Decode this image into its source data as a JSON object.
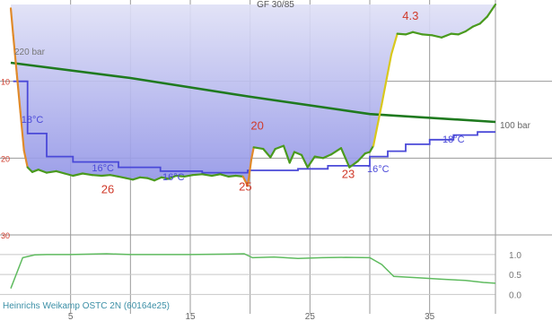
{
  "chart_data": [
    {
      "type": "area",
      "title": "GF 30/85",
      "xlim": [
        0,
        40.5
      ],
      "ylim": [
        30,
        0
      ],
      "x_ticks": [
        "5",
        "15",
        "25",
        "35"
      ],
      "x_tick_values": [
        5,
        15,
        25,
        35
      ],
      "y_ticks": [
        "10",
        "20",
        "30"
      ],
      "y_tick_values": [
        10,
        20,
        30
      ],
      "grid": true,
      "colors": {
        "depth_fill_top": "#dfe0f6",
        "depth_fill_bottom": "#8f92e6",
        "depth_line": "#4a9a1e",
        "depth_fast": "#d9c81c",
        "temperature": "#4a49d8",
        "pressure": "#1f7a1f",
        "ppo2": "#5fbb5f",
        "annotation": "#d03a2a",
        "grid": "#9a9a9a"
      },
      "depth_profile": {
        "unit": "m",
        "points": [
          [
            0,
            0.5
          ],
          [
            0.2,
            4
          ],
          [
            0.5,
            9
          ],
          [
            0.8,
            14
          ],
          [
            1.1,
            19
          ],
          [
            1.4,
            21.2
          ],
          [
            1.8,
            21.8
          ],
          [
            2.3,
            21.5
          ],
          [
            3,
            21.9
          ],
          [
            3.8,
            21.7
          ],
          [
            4.5,
            22.0
          ],
          [
            5.2,
            22.3
          ],
          [
            6,
            22.0
          ],
          [
            6.8,
            22.2
          ],
          [
            7.6,
            22.3
          ],
          [
            8.3,
            22.2
          ],
          [
            9,
            22.4
          ],
          [
            9.6,
            22.6
          ],
          [
            10.2,
            22.8
          ],
          [
            10.8,
            22.5
          ],
          [
            11.4,
            22.6
          ],
          [
            12,
            22.9
          ],
          [
            12.6,
            22.5
          ],
          [
            13.2,
            22.7
          ],
          [
            13.8,
            22.3
          ],
          [
            14.5,
            22.4
          ],
          [
            15.2,
            22.2
          ],
          [
            16,
            22.1
          ],
          [
            16.8,
            22.3
          ],
          [
            17.5,
            22.1
          ],
          [
            18.2,
            22.4
          ],
          [
            18.8,
            22.3
          ],
          [
            19.4,
            22.4
          ],
          [
            19.8,
            23.6
          ],
          [
            20.1,
            20.2
          ],
          [
            20.3,
            18.6
          ],
          [
            21.1,
            18.8
          ],
          [
            21.7,
            19.9
          ],
          [
            22.1,
            18.8
          ],
          [
            22.8,
            18.4
          ],
          [
            23.3,
            20.6
          ],
          [
            23.7,
            19.2
          ],
          [
            24.3,
            19.6
          ],
          [
            24.8,
            21.2
          ],
          [
            25.4,
            19.8
          ],
          [
            26.1,
            20.0
          ],
          [
            26.8,
            19.5
          ],
          [
            27.6,
            18.7
          ],
          [
            28.3,
            21.2
          ],
          [
            29.0,
            20.4
          ],
          [
            29.6,
            19.4
          ],
          [
            30.0,
            19.2
          ],
          [
            30.3,
            18.4
          ],
          [
            31.0,
            13.0
          ],
          [
            31.8,
            6.5
          ],
          [
            32.3,
            3.8
          ],
          [
            33.0,
            3.9
          ],
          [
            33.6,
            3.6
          ],
          [
            34.4,
            3.9
          ],
          [
            35.2,
            4.0
          ],
          [
            36.0,
            4.3
          ],
          [
            36.8,
            3.8
          ],
          [
            37.4,
            3.9
          ],
          [
            38.0,
            3.5
          ],
          [
            38.6,
            2.9
          ],
          [
            39.2,
            2.5
          ],
          [
            39.8,
            1.6
          ],
          [
            40.5,
            0.0
          ]
        ]
      },
      "temperature": {
        "unit": "°C",
        "steps": [
          [
            0.2,
            10
          ],
          [
            1.4,
            10
          ],
          [
            1.4,
            16.8
          ],
          [
            3.0,
            16.8
          ],
          [
            3.0,
            19.8
          ],
          [
            5.2,
            19.8
          ],
          [
            5.2,
            20.5
          ],
          [
            9.0,
            20.5
          ],
          [
            9.0,
            21.2
          ],
          [
            12.5,
            21.2
          ],
          [
            12.5,
            21.7
          ],
          [
            16.0,
            21.7
          ],
          [
            16.0,
            21.9
          ],
          [
            19.8,
            21.9
          ],
          [
            19.8,
            21.6
          ],
          [
            24.0,
            21.6
          ],
          [
            24.0,
            21.4
          ],
          [
            26.5,
            21.4
          ],
          [
            26.5,
            21.0
          ],
          [
            30.0,
            21.0
          ],
          [
            30.0,
            19.8
          ],
          [
            31.5,
            19.8
          ],
          [
            31.5,
            19.1
          ],
          [
            33.0,
            19.1
          ],
          [
            33.0,
            18.2
          ],
          [
            35.0,
            18.2
          ],
          [
            35.0,
            17.6
          ],
          [
            37.0,
            17.6
          ],
          [
            37.0,
            17.0
          ],
          [
            39.0,
            17.0
          ],
          [
            39.0,
            16.6
          ],
          [
            40.5,
            16.6
          ]
        ]
      },
      "tank_pressure": {
        "unit": "bar",
        "start": 220,
        "end": 100,
        "points": [
          [
            0,
            220
          ],
          [
            10,
            189
          ],
          [
            20,
            151
          ],
          [
            30,
            116
          ],
          [
            40.5,
            100
          ]
        ]
      },
      "ppo2": {
        "ticks": [
          "1.0",
          "0.5",
          "0.0"
        ],
        "tick_values": [
          1.0,
          0.5,
          0.0
        ],
        "range": [
          -0.15,
          1.2
        ],
        "points": [
          [
            0,
            0.15
          ],
          [
            1,
            0.92
          ],
          [
            2,
            0.99
          ],
          [
            3,
            1.0
          ],
          [
            5,
            1.0
          ],
          [
            8,
            1.02
          ],
          [
            10,
            1.0
          ],
          [
            12,
            1.0
          ],
          [
            15,
            1.0
          ],
          [
            18,
            1.01
          ],
          [
            19.5,
            1.02
          ],
          [
            20.2,
            0.92
          ],
          [
            22,
            0.94
          ],
          [
            24,
            0.9
          ],
          [
            26,
            0.92
          ],
          [
            28,
            0.93
          ],
          [
            30,
            0.92
          ],
          [
            31,
            0.75
          ],
          [
            32,
            0.45
          ],
          [
            34,
            0.42
          ],
          [
            36,
            0.38
          ],
          [
            38,
            0.35
          ],
          [
            39.5,
            0.3
          ],
          [
            40.5,
            0.28
          ]
        ]
      },
      "annotations": {
        "pressure_start_label": "220 bar",
        "pressure_end_label": "100 bar",
        "depth_labels": [
          {
            "text": "26",
            "x": 8.1,
            "y": 24.6
          },
          {
            "text": "25",
            "x": 19.6,
            "y": 24.2
          },
          {
            "text": "20",
            "x": 20.6,
            "y": 16.3
          },
          {
            "text": "23",
            "x": 28.2,
            "y": 22.6
          },
          {
            "text": "4.3",
            "x": 33.4,
            "y": 2.0
          }
        ],
        "temperature_labels": [
          {
            "text": "18°C",
            "x": 1.8,
            "y": 15.4
          },
          {
            "text": "16°C",
            "x": 7.7,
            "y": 21.7
          },
          {
            "text": "16°C",
            "x": 13.6,
            "y": 22.9
          },
          {
            "text": "16°C",
            "x": 30.7,
            "y": 21.8
          },
          {
            "text": "18°C",
            "x": 37.0,
            "y": 18.0
          }
        ],
        "footer": "Heinrichs Weikamp OSTC 2N (60164e25)"
      }
    }
  ]
}
